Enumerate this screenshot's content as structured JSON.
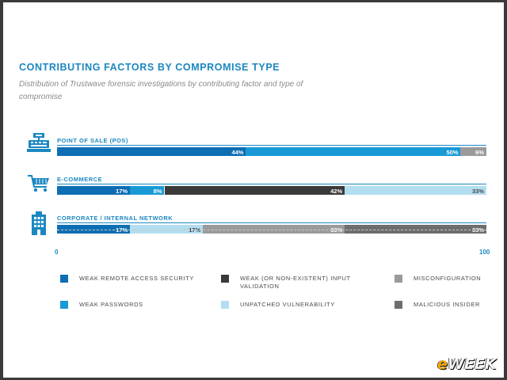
{
  "chart_data": {
    "type": "bar",
    "stacked": true,
    "orientation": "horizontal",
    "title": "CONTRIBUTING FACTORS BY COMPROMISE TYPE",
    "subtitle": "Distribution of Trustwave forensic investigations by contributing factor and type of compromise",
    "categories": [
      "POINT OF SALE (POS)",
      "E-COMMERCE",
      "CORPORATE / INTERNAL NETWORK"
    ],
    "series": [
      {
        "name": "WEAK REMOTE ACCESS SECURITY",
        "color": "#0e6eb4",
        "text_color": "#ffffff",
        "values": [
          44,
          17,
          17
        ]
      },
      {
        "name": "WEAK PASSWORDS",
        "color": "#199ad6",
        "text_color": "#ffffff",
        "values": [
          50,
          8,
          0
        ]
      },
      {
        "name": "WEAK (OR NON-EXISTENT) INPUT VALIDATION",
        "color": "#3a3a3a",
        "text_color": "#ffffff",
        "values": [
          0,
          42,
          0
        ]
      },
      {
        "name": "UNPATCHED VULNERABILITY",
        "color": "#b2def0",
        "text_color": "#4a4a4a",
        "values": [
          0,
          33,
          17
        ]
      },
      {
        "name": "MISCONFIGURATION",
        "color": "#9a9a9a",
        "text_color": "#ffffff",
        "values": [
          6,
          0,
          33
        ]
      },
      {
        "name": "MALICIOUS INSIDER",
        "color": "#6d6d6d",
        "text_color": "#ffffff",
        "values": [
          0,
          0,
          33
        ]
      }
    ],
    "xlim": [
      0,
      100
    ],
    "x_ticks": [
      "0",
      "100"
    ],
    "legend_position": "bottom",
    "legend_order": [
      "WEAK REMOTE ACCESS SECURITY",
      "WEAK (OR NON-EXISTENT) INPUT VALIDATION",
      "MISCONFIGURATION",
      "WEAK PASSWORDS",
      "UNPATCHED VULNERABILITY",
      "MALICIOUS INSIDER"
    ],
    "category_icons": [
      "cash-register-icon",
      "shopping-cart-icon",
      "office-building-icon"
    ]
  },
  "watermark": {
    "text": "eWEEK",
    "accent_letter": "e",
    "rest": "WEEK"
  }
}
